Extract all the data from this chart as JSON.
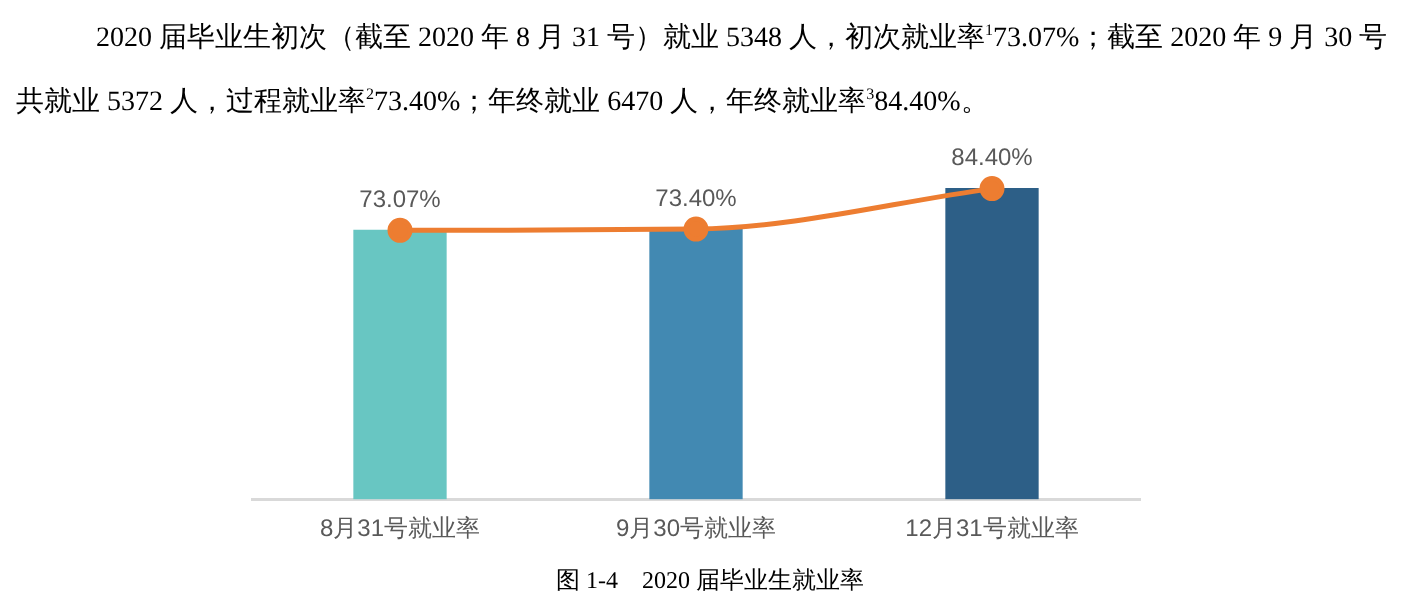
{
  "chart_data": {
    "type": "bar",
    "title": "图 1-4　2020 届毕业生就业率",
    "annotations": [
      "2020 届毕业生初次（截至 2020 年 8 月 31 号）就业 5348 人，初次就业率$^{1}$73.07%；截至 2020 年 9 月 30 号共就业 5372 人，过程就业率$^{2}$73.40%；年终就业 6470 人，年终就业率$^{3}$84.40%。"
    ],
    "categories": [
      "8月31号就业率",
      "9月30号就业率",
      "12月31号就业率"
    ],
    "series": [
      {
        "colors": [
          "#68c6c2",
          "#4289b2",
          "#2d5f87"
        ],
        "values": [
          73.07,
          73.4,
          84.4
        ]
      },
      {
        "type": "line",
        "color": "#ed7d31",
        "values": [
          73.07,
          73.4,
          84.4
        ],
        "value_labels": [
          "73.07%",
          "73.40%",
          "84.40%"
        ]
      }
    ],
    "legend": false,
    "marker": "circle"
  }
}
